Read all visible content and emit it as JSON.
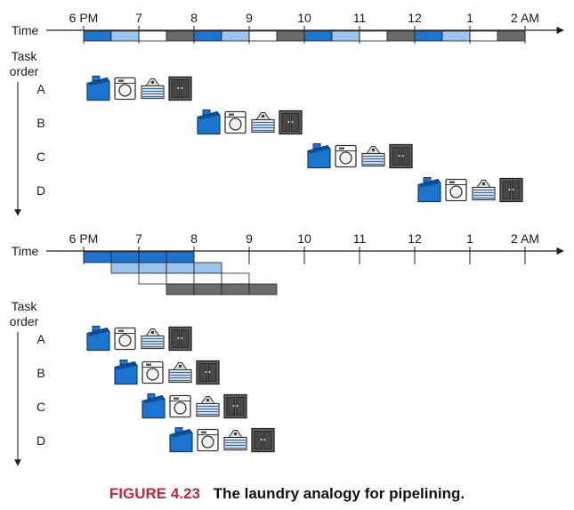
{
  "figure": {
    "label": "FIGURE 4.23",
    "title": "The laundry analogy for pipelining."
  },
  "time_label": "Time",
  "task_order_label": [
    "Task",
    "order"
  ],
  "time_ticks": [
    "6 PM",
    "7",
    "8",
    "9",
    "10",
    "11",
    "12",
    "1",
    "2 AM"
  ],
  "tasks": [
    "A",
    "B",
    "C",
    "D"
  ],
  "stages": [
    {
      "name": "washer",
      "icon": "washer-icon",
      "color": "#1b75d0"
    },
    {
      "name": "dryer",
      "icon": "dryer-icon",
      "color": "#9cc3ec"
    },
    {
      "name": "folder",
      "icon": "folding-table-icon",
      "color": "#ffffff"
    },
    {
      "name": "storer",
      "icon": "closet-icon",
      "color": "#6b6b6b"
    }
  ],
  "sequential": {
    "stage_half_hours": 1,
    "task_start_slots": [
      0,
      4,
      8,
      12
    ]
  },
  "pipelined": {
    "stage_half_hours": 1,
    "task_start_slots": [
      0,
      1,
      2,
      3
    ]
  }
}
